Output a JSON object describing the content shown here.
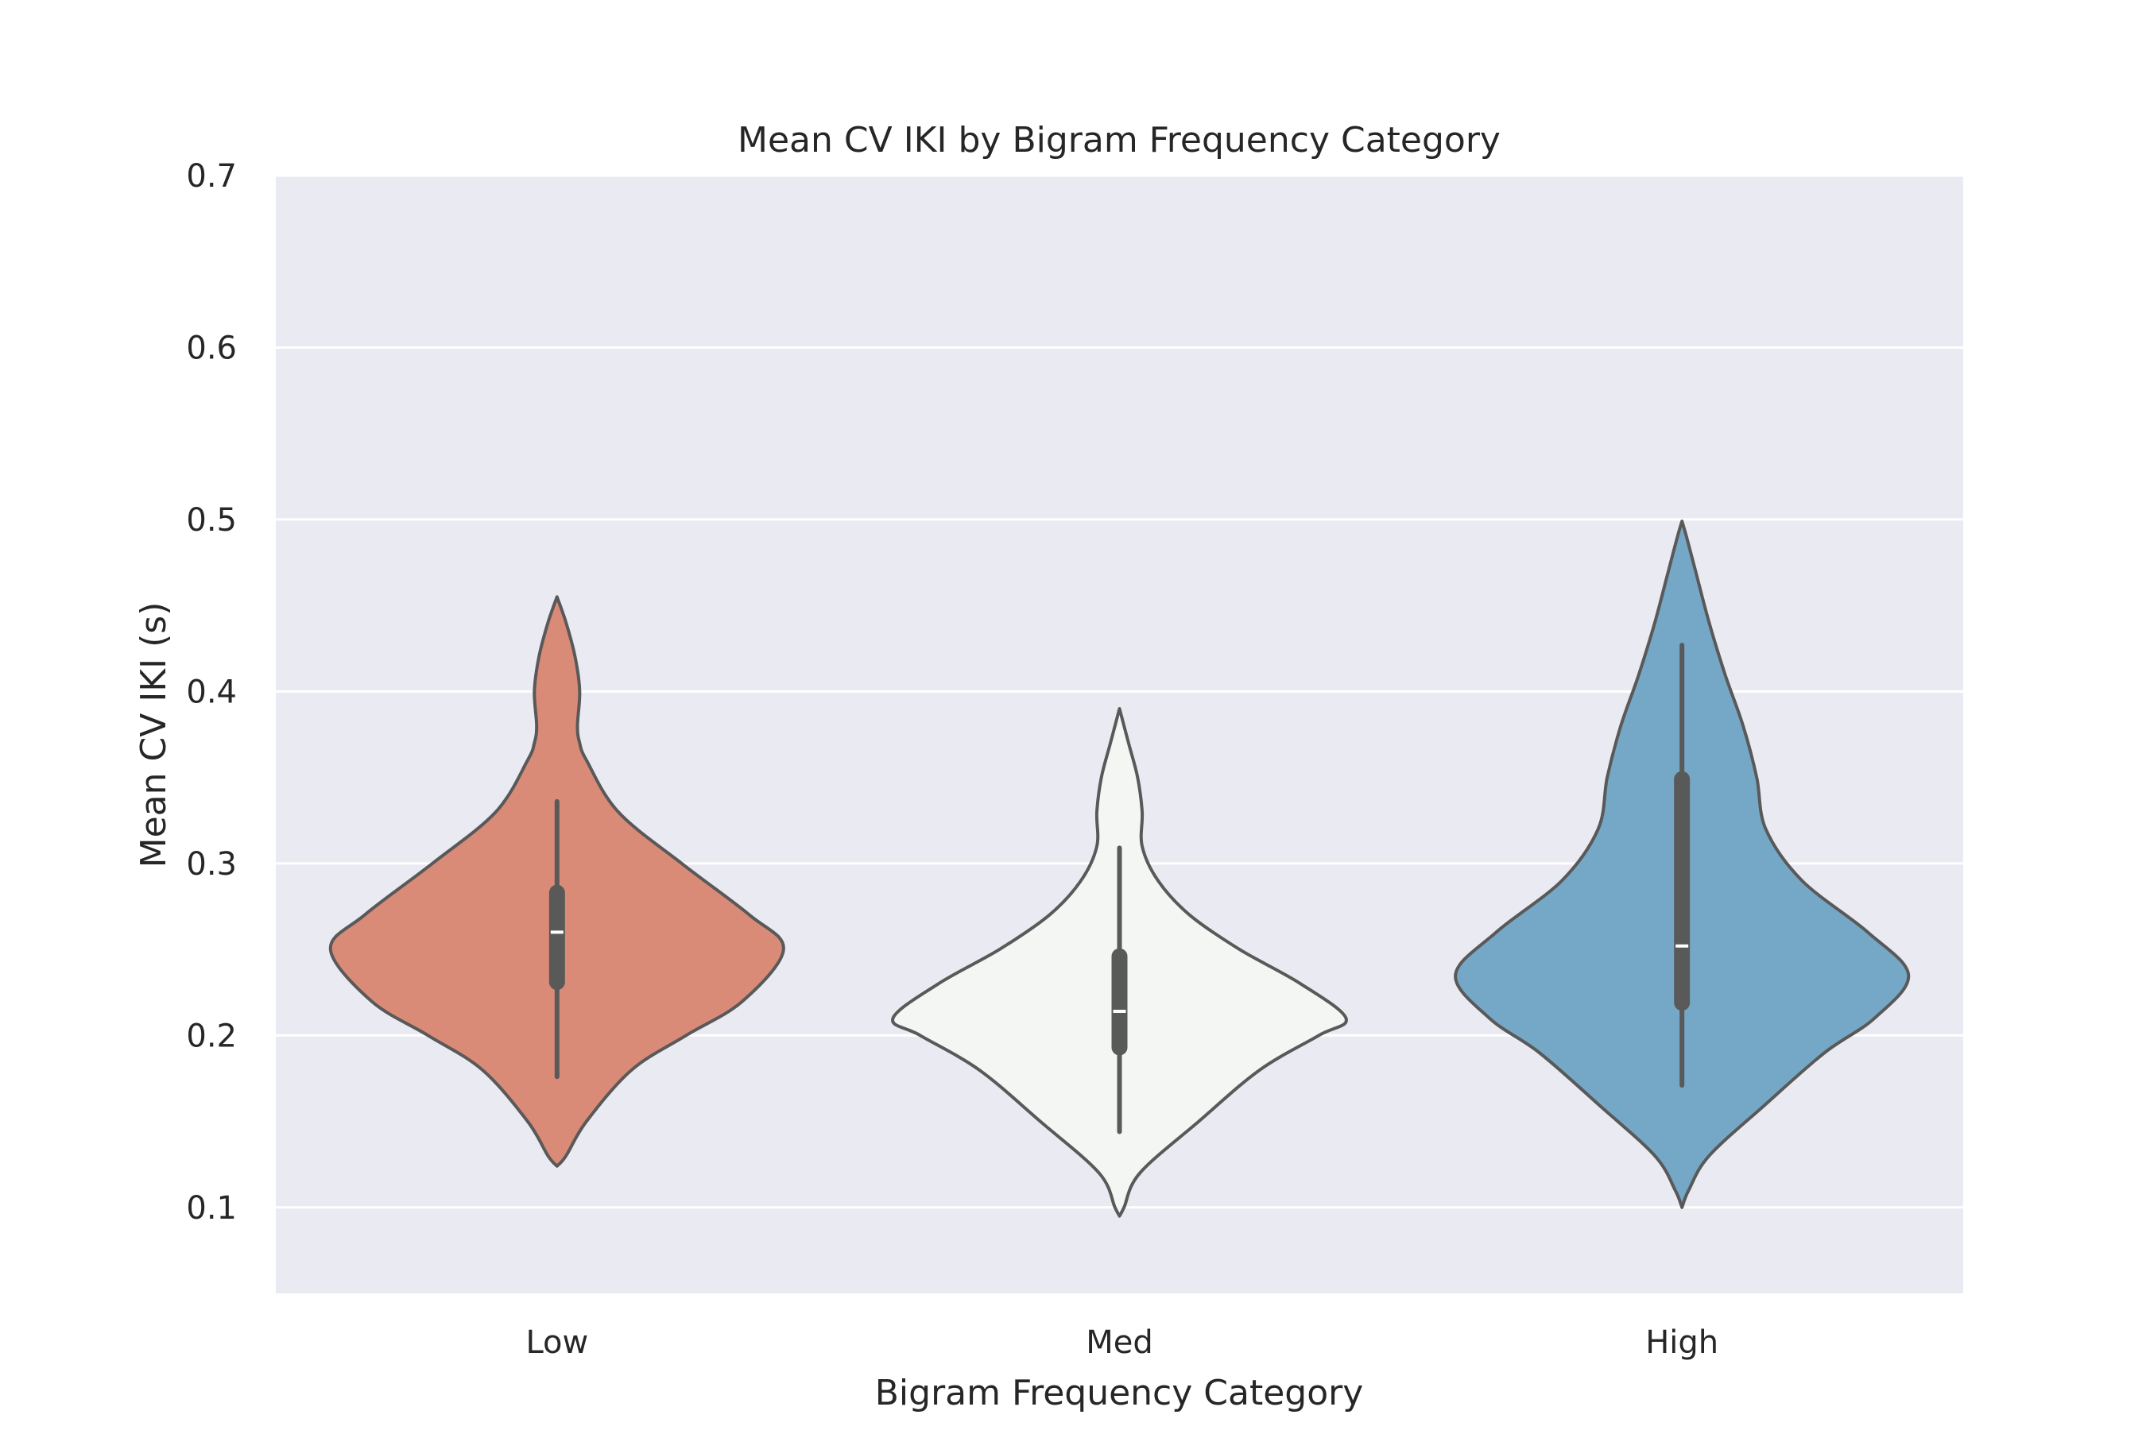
{
  "chart_data": {
    "type": "violin",
    "title": "Mean CV IKI by Bigram Frequency Category",
    "xlabel": "Bigram Frequency Category",
    "ylabel": "Mean CV IKI (s)",
    "categories": [
      "Low",
      "Med",
      "High"
    ],
    "ylim": [
      0.05,
      0.7
    ],
    "yticks": [
      0.1,
      0.2,
      0.3,
      0.4,
      0.5,
      0.6,
      0.7
    ],
    "grid": true,
    "colors": [
      "#d98b78",
      "#f4f6f4",
      "#75a8c6"
    ],
    "series": [
      {
        "category": "Low",
        "median": 0.26,
        "q1": 0.231,
        "q3": 0.283,
        "whisker_low": 0.176,
        "whisker_high": 0.336,
        "density_y": [
          0.124,
          0.13,
          0.15,
          0.18,
          0.2,
          0.22,
          0.25,
          0.27,
          0.3,
          0.33,
          0.36,
          0.37,
          0.38,
          0.4,
          0.42,
          0.44,
          0.455
        ],
        "density_w": [
          0.0,
          0.04,
          0.13,
          0.33,
          0.57,
          0.82,
          1.0,
          0.85,
          0.55,
          0.27,
          0.13,
          0.1,
          0.09,
          0.1,
          0.08,
          0.04,
          0.0
        ]
      },
      {
        "category": "Med",
        "median": 0.214,
        "q1": 0.193,
        "q3": 0.246,
        "whisker_low": 0.144,
        "whisker_high": 0.309,
        "density_y": [
          0.095,
          0.1,
          0.12,
          0.15,
          0.18,
          0.2,
          0.21,
          0.23,
          0.25,
          0.27,
          0.29,
          0.31,
          0.33,
          0.35,
          0.37,
          0.39
        ],
        "density_w": [
          0.0,
          0.02,
          0.09,
          0.35,
          0.62,
          0.88,
          1.0,
          0.8,
          0.53,
          0.31,
          0.17,
          0.1,
          0.1,
          0.08,
          0.04,
          0.0
        ]
      },
      {
        "category": "High",
        "median": 0.252,
        "q1": 0.219,
        "q3": 0.349,
        "whisker_low": 0.171,
        "whisker_high": 0.427,
        "density_y": [
          0.1,
          0.11,
          0.13,
          0.16,
          0.19,
          0.21,
          0.235,
          0.26,
          0.29,
          0.32,
          0.35,
          0.38,
          0.41,
          0.44,
          0.47,
          0.49,
          0.499
        ],
        "density_w": [
          0.0,
          0.03,
          0.12,
          0.37,
          0.63,
          0.85,
          1.0,
          0.82,
          0.53,
          0.37,
          0.33,
          0.27,
          0.19,
          0.12,
          0.06,
          0.02,
          0.0
        ]
      }
    ]
  }
}
